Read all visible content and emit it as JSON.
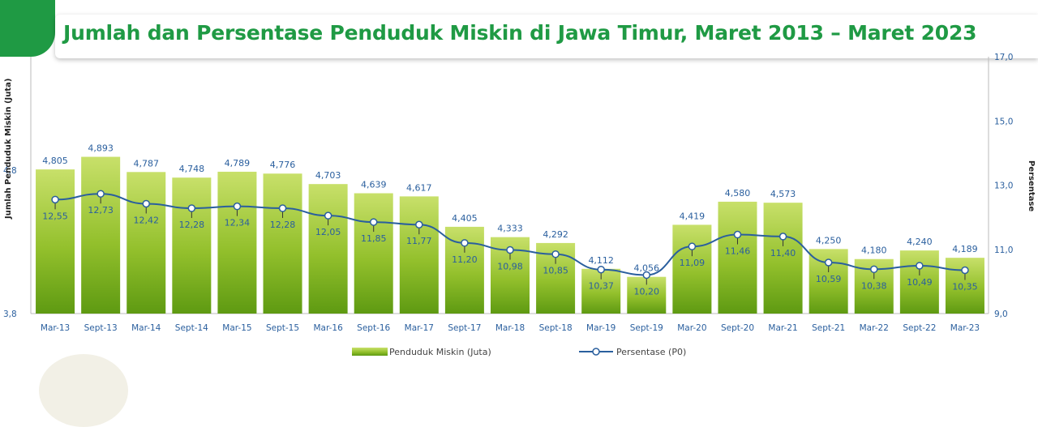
{
  "header": {
    "title": "Jumlah dan Persentase Penduduk Miskin di Jawa Timur, Maret 2013 – Maret 2023"
  },
  "colors": {
    "brand_green": "#1f9a44",
    "bar_top": "#bcd84a",
    "bar_bottom": "#5e9a12",
    "line": "#2a5f9e"
  },
  "chart_data": {
    "type": "bar",
    "title": "Jumlah dan Persentase Penduduk Miskin di Jawa Timur, Maret 2013 – Maret 2023",
    "categories": [
      "Mar-13",
      "Sept-13",
      "Mar-14",
      "Sept-14",
      "Mar-15",
      "Sept-15",
      "Mar-16",
      "Sept-16",
      "Mar-17",
      "Sept-17",
      "Mar-18",
      "Sept-18",
      "Mar-19",
      "Sept-19",
      "Mar-20",
      "Sept-20",
      "Mar-21",
      "Sept-21",
      "Mar-22",
      "Sept-22",
      "Mar-23"
    ],
    "series": [
      {
        "name": "Penduduk Miskin (Juta)",
        "type": "bar",
        "axis": "left",
        "values": [
          4.805,
          4.893,
          4.787,
          4.748,
          4.789,
          4.776,
          4.703,
          4.639,
          4.617,
          4.405,
          4.333,
          4.292,
          4.112,
          4.056,
          4.419,
          4.58,
          4.573,
          4.25,
          4.18,
          4.24,
          4.189
        ],
        "labels": [
          "4,805",
          "4,893",
          "4,787",
          "4,748",
          "4,789",
          "4,776",
          "4,703",
          "4,639",
          "4,617",
          "4,405",
          "4,333",
          "4,292",
          "4,112",
          "4,056",
          "4,419",
          "4,580",
          "4,573",
          "4,250",
          "4,180",
          "4,240",
          "4,189"
        ]
      },
      {
        "name": "Persentase (P0)",
        "type": "line",
        "axis": "right",
        "values": [
          12.55,
          12.73,
          12.42,
          12.28,
          12.34,
          12.28,
          12.05,
          11.85,
          11.77,
          11.2,
          10.98,
          10.85,
          10.37,
          10.2,
          11.09,
          11.46,
          11.4,
          10.59,
          10.38,
          10.49,
          10.35
        ],
        "labels": [
          "12,55",
          "12,73",
          "12,42",
          "12,28",
          "12,34",
          "12,28",
          "12,05",
          "11,85",
          "11,77",
          "11,20",
          "10,98",
          "10,85",
          "10,37",
          "10,20",
          "11,09",
          "11,46",
          "11,40",
          "10,59",
          "10,38",
          "10,49",
          "10,35"
        ]
      }
    ],
    "ylabel": "Jumlah Penduduk Miskin (Juta)",
    "y2label": "Persentase",
    "ylim": [
      3.8,
      5.8
    ],
    "y_ticks": [
      "3,8",
      "4,8"
    ],
    "y2lim": [
      9.0,
      17.0
    ],
    "y2_ticks": [
      "9,0",
      "11,0",
      "13,0",
      "15,0",
      "17,0"
    ],
    "legend_position": "bottom",
    "grid": false
  }
}
